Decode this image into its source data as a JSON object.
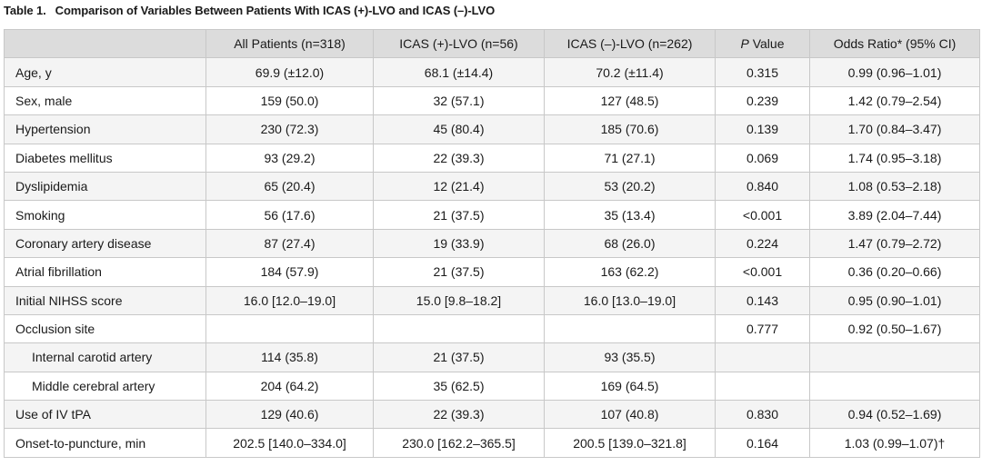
{
  "caption": {
    "number": "Table 1.",
    "title": "Comparison of Variables Between Patients With ICAS (+)-LVO and ICAS (–)-LVO"
  },
  "columns": {
    "variable": "",
    "all": "All Patients (n=318)",
    "icas_pos": "ICAS (+)-LVO (n=56)",
    "icas_neg": "ICAS (–)-LVO (n=262)",
    "p_letter": "P",
    "p_rest": "Value",
    "or": "Odds Ratio* (95% CI)"
  },
  "rows": [
    {
      "label": "Age, y",
      "all": "69.9 (±12.0)",
      "pos": "68.1 (±14.4)",
      "neg": "70.2 (±11.4)",
      "p": "0.315",
      "or": "0.99 (0.96–1.01)"
    },
    {
      "label": "Sex, male",
      "all": "159 (50.0)",
      "pos": "32 (57.1)",
      "neg": "127 (48.5)",
      "p": "0.239",
      "or": "1.42 (0.79–2.54)"
    },
    {
      "label": "Hypertension",
      "all": "230 (72.3)",
      "pos": "45 (80.4)",
      "neg": "185 (70.6)",
      "p": "0.139",
      "or": "1.70 (0.84–3.47)"
    },
    {
      "label": "Diabetes mellitus",
      "all": "93 (29.2)",
      "pos": "22 (39.3)",
      "neg": "71 (27.1)",
      "p": "0.069",
      "or": "1.74 (0.95–3.18)"
    },
    {
      "label": "Dyslipidemia",
      "all": "65 (20.4)",
      "pos": "12 (21.4)",
      "neg": "53 (20.2)",
      "p": "0.840",
      "or": "1.08 (0.53–2.18)"
    },
    {
      "label": "Smoking",
      "all": "56 (17.6)",
      "pos": "21 (37.5)",
      "neg": "35 (13.4)",
      "p": "<0.001",
      "or": "3.89 (2.04–7.44)"
    },
    {
      "label": "Coronary artery disease",
      "all": "87 (27.4)",
      "pos": "19 (33.9)",
      "neg": "68 (26.0)",
      "p": "0.224",
      "or": "1.47 (0.79–2.72)"
    },
    {
      "label": "Atrial fibrillation",
      "all": "184 (57.9)",
      "pos": "21 (37.5)",
      "neg": "163 (62.2)",
      "p": "<0.001",
      "or": "0.36 (0.20–0.66)"
    },
    {
      "label": "Initial NIHSS score",
      "all": "16.0 [12.0–19.0]",
      "pos": "15.0 [9.8–18.2]",
      "neg": "16.0 [13.0–19.0]",
      "p": "0.143",
      "or": "0.95 (0.90–1.01)"
    },
    {
      "label": "Occlusion site",
      "all": "",
      "pos": "",
      "neg": "",
      "p": "0.777",
      "or": "0.92 (0.50–1.67)"
    },
    {
      "label": "Internal carotid artery",
      "all": "114 (35.8)",
      "pos": "21 (37.5)",
      "neg": "93 (35.5)",
      "p": "",
      "or": ""
    },
    {
      "label": "Middle cerebral artery",
      "all": "204 (64.2)",
      "pos": "35 (62.5)",
      "neg": "169 (64.5)",
      "p": "",
      "or": ""
    },
    {
      "label": "Use of IV tPA",
      "all": "129 (40.6)",
      "pos": "22 (39.3)",
      "neg": "107 (40.8)",
      "p": "0.830",
      "or": "0.94 (0.52–1.69)"
    },
    {
      "label": "Onset-to-puncture, min",
      "all": "202.5 [140.0–334.0]",
      "pos": "230.0 [162.2–365.5]",
      "neg": "200.5 [139.0–321.8]",
      "p": "0.164",
      "or": "1.03 (0.99–1.07)†"
    }
  ]
}
